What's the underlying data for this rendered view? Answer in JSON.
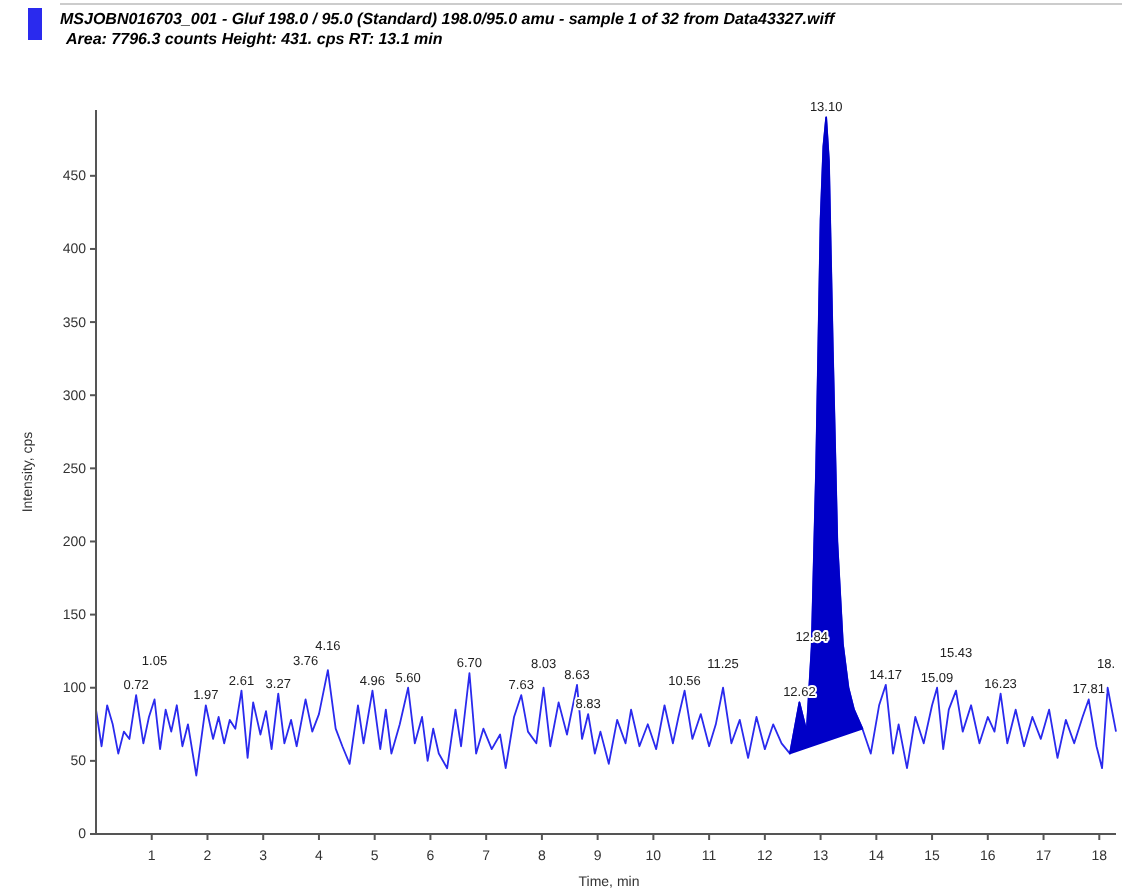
{
  "chart_data": {
    "type": "line",
    "title": "MSJOBN016703_001 - Gluf 198.0 / 95.0 (Standard) 198.0/95.0 amu - sample 1 of 32 from Data43327.wiff",
    "subtitle": "Area: 7796.3 counts  Height: 431. cps  RT: 13.1 min",
    "xlabel": "Time, min",
    "ylabel": "Intensity, cps",
    "xlim": [
      0,
      18.3
    ],
    "xticks": [
      1,
      2,
      3,
      4,
      5,
      6,
      7,
      8,
      9,
      10,
      11,
      12,
      13,
      14,
      15,
      16,
      17,
      18
    ],
    "ylim": [
      0,
      495
    ],
    "yticks": [
      0,
      50,
      100,
      150,
      200,
      250,
      300,
      350,
      400,
      450
    ],
    "grid": false,
    "series": [
      {
        "type": "line",
        "color": "#2a2aee",
        "x": [
          0,
          0.1,
          0.2,
          0.3,
          0.4,
          0.5,
          0.6,
          0.72,
          0.85,
          0.95,
          1.05,
          1.15,
          1.25,
          1.35,
          1.45,
          1.55,
          1.65,
          1.8,
          1.97,
          2.1,
          2.2,
          2.3,
          2.4,
          2.5,
          2.61,
          2.72,
          2.82,
          2.95,
          3.05,
          3.15,
          3.27,
          3.38,
          3.5,
          3.6,
          3.76,
          3.88,
          4.0,
          4.16,
          4.3,
          4.42,
          4.55,
          4.7,
          4.8,
          4.96,
          5.1,
          5.2,
          5.3,
          5.45,
          5.6,
          5.72,
          5.85,
          5.95,
          6.05,
          6.15,
          6.3,
          6.45,
          6.55,
          6.7,
          6.82,
          6.95,
          7.1,
          7.25,
          7.35,
          7.5,
          7.63,
          7.75,
          7.9,
          8.03,
          8.15,
          8.3,
          8.45,
          8.63,
          8.72,
          8.83,
          8.95,
          9.05,
          9.2,
          9.35,
          9.5,
          9.6,
          9.75,
          9.9,
          10.05,
          10.2,
          10.35,
          10.45,
          10.56,
          10.7,
          10.85,
          11.0,
          11.12,
          11.25,
          11.4,
          11.55,
          11.7,
          11.85,
          12.0,
          12.15,
          12.3,
          12.45,
          12.62,
          12.75,
          12.84,
          12.92,
          13.0,
          13.05,
          13.1,
          13.15,
          13.22,
          13.3,
          13.4,
          13.5,
          13.6,
          13.75,
          13.9,
          14.05,
          14.17,
          14.3,
          14.4,
          14.55,
          14.7,
          14.85,
          15.0,
          15.09,
          15.2,
          15.3,
          15.43,
          15.55,
          15.7,
          15.85,
          16.0,
          16.12,
          16.23,
          16.35,
          16.5,
          16.65,
          16.8,
          16.95,
          17.1,
          17.25,
          17.4,
          17.55,
          17.7,
          17.81,
          17.95,
          18.05,
          18.15,
          18.3
        ],
        "values": [
          85,
          60,
          88,
          75,
          55,
          70,
          65,
          95,
          62,
          80,
          92,
          58,
          85,
          70,
          88,
          60,
          75,
          40,
          88,
          65,
          80,
          62,
          78,
          72,
          98,
          52,
          90,
          68,
          84,
          58,
          96,
          62,
          78,
          60,
          92,
          70,
          82,
          112,
          72,
          60,
          48,
          88,
          62,
          98,
          58,
          85,
          55,
          75,
          100,
          62,
          80,
          50,
          72,
          55,
          45,
          85,
          60,
          110,
          55,
          72,
          58,
          68,
          45,
          80,
          95,
          70,
          62,
          100,
          60,
          90,
          68,
          102,
          65,
          82,
          55,
          70,
          48,
          78,
          62,
          85,
          60,
          75,
          58,
          88,
          62,
          80,
          98,
          65,
          82,
          60,
          75,
          100,
          62,
          78,
          52,
          80,
          58,
          75,
          62,
          55,
          90,
          70,
          128,
          250,
          420,
          470,
          490,
          460,
          330,
          200,
          130,
          100,
          85,
          72,
          55,
          88,
          102,
          55,
          75,
          45,
          80,
          62,
          88,
          100,
          58,
          85,
          98,
          70,
          88,
          62,
          80,
          70,
          96,
          62,
          85,
          60,
          80,
          65,
          85,
          52,
          78,
          62,
          80,
          92,
          60,
          45,
          100,
          70
        ]
      },
      {
        "type": "area",
        "color": "#0000c8",
        "x": [
          12.45,
          12.62,
          12.75,
          12.84,
          12.92,
          13.0,
          13.05,
          13.1,
          13.15,
          13.22,
          13.3,
          13.4,
          13.5,
          13.6,
          13.75
        ],
        "values": [
          55,
          90,
          70,
          128,
          250,
          420,
          470,
          490,
          460,
          330,
          200,
          130,
          100,
          85,
          72
        ]
      }
    ],
    "annotations": [
      {
        "text": "0.72",
        "x": 0.72,
        "y": 95
      },
      {
        "text": "1.05",
        "x": 1.05,
        "y": 92
      },
      {
        "text": "1.97",
        "x": 1.97,
        "y": 88
      },
      {
        "text": "2.61",
        "x": 2.61,
        "y": 98
      },
      {
        "text": "3.27",
        "x": 3.27,
        "y": 96
      },
      {
        "text": "3.76",
        "x": 3.76,
        "y": 92
      },
      {
        "text": "4.16",
        "x": 4.16,
        "y": 112
      },
      {
        "text": "4.96",
        "x": 4.96,
        "y": 98
      },
      {
        "text": "5.60",
        "x": 5.6,
        "y": 100
      },
      {
        "text": "6.70",
        "x": 6.7,
        "y": 110
      },
      {
        "text": "7.63",
        "x": 7.63,
        "y": 95
      },
      {
        "text": "8.03",
        "x": 8.03,
        "y": 100
      },
      {
        "text": "8.63",
        "x": 8.63,
        "y": 102
      },
      {
        "text": "8.83",
        "x": 8.83,
        "y": 82
      },
      {
        "text": "10.56",
        "x": 10.56,
        "y": 98
      },
      {
        "text": "11.25",
        "x": 11.25,
        "y": 100
      },
      {
        "text": "12.62",
        "x": 12.62,
        "y": 90
      },
      {
        "text": "12.84",
        "x": 12.84,
        "y": 128
      },
      {
        "text": "13.10",
        "x": 13.1,
        "y": 490
      },
      {
        "text": "14.17",
        "x": 14.17,
        "y": 102
      },
      {
        "text": "15.09",
        "x": 15.09,
        "y": 100
      },
      {
        "text": "15.43",
        "x": 15.43,
        "y": 98
      },
      {
        "text": "16.23",
        "x": 16.23,
        "y": 96
      },
      {
        "text": "17.81",
        "x": 17.81,
        "y": 92
      },
      {
        "text": "18.",
        "x": 18.15,
        "y": 100
      }
    ]
  }
}
